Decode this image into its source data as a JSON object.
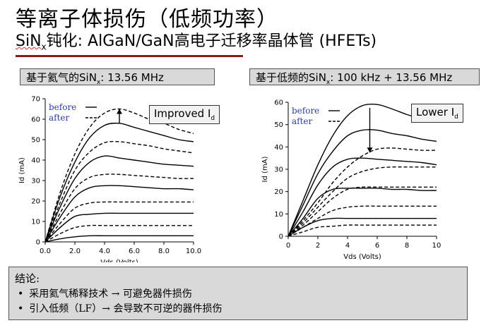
{
  "slide": {
    "title": "等离子体损伤（低频功率）",
    "subtitle_pre": "SiN",
    "subtitle_sub": "x",
    "subtitle_post": "钝化: AlGaN/GaN高电子迁移率晶体管 (HFETs)"
  },
  "panels": {
    "left": {
      "label_pre": "基于氦气的SiN",
      "label_sub": "x",
      "label_post": ": 13.56 MHz",
      "callout_main": "Improved I",
      "callout_sub": "d"
    },
    "right": {
      "label_pre": "基于低频的SiN",
      "label_sub": "x",
      "label_post": ": 100 kHz + 13.56 MHz",
      "callout_main": "Lower I",
      "callout_sub": "d"
    }
  },
  "conclusion": {
    "heading": "结论:",
    "bullets": [
      "采用氦气稀释技术 → 可避免器件损伤",
      "引入低频（LF）→ 会导致不可逆的器件损伤"
    ]
  },
  "colors": {
    "legend_text": "#2b3d9e",
    "line": "#000000",
    "axis": "#000000",
    "rule": "#8b1a1a"
  },
  "chart_data": [
    {
      "type": "line",
      "xlabel": "Vds (Volts)",
      "ylabel": "Id (mA)",
      "xlim": [
        0,
        10
      ],
      "ylim": [
        0,
        70
      ],
      "xticks": [
        "0.0",
        "2.0",
        "4.0",
        "6.0",
        "8.0",
        "10.0"
      ],
      "yticks": [
        "0",
        "10",
        "20",
        "30",
        "40",
        "50",
        "60",
        "70"
      ],
      "legend": [
        "before",
        "after"
      ],
      "legend_position": "top-left",
      "series": [
        {
          "name": "before",
          "curves": [
            {
              "x": [
                0,
                1,
                2,
                3,
                4,
                5,
                6,
                7,
                8,
                9,
                10
              ],
              "y": [
                0,
                22,
                39,
                51,
                57,
                58,
                56,
                54,
                52,
                50,
                49
              ]
            },
            {
              "x": [
                0,
                1,
                2,
                3,
                4,
                5,
                6,
                7,
                8,
                9,
                10
              ],
              "y": [
                0,
                17,
                31,
                39,
                42,
                41,
                40,
                39,
                38,
                37.5,
                37
              ]
            },
            {
              "x": [
                0,
                1,
                2,
                3,
                4,
                5,
                6,
                7,
                8,
                9,
                10
              ],
              "y": [
                0,
                12,
                22,
                26.5,
                27.5,
                27.5,
                27,
                26.5,
                26,
                26,
                25.5
              ]
            },
            {
              "x": [
                0,
                1,
                2,
                3,
                4,
                5,
                6,
                7,
                8,
                9,
                10
              ],
              "y": [
                0,
                7,
                12.5,
                13.5,
                14,
                14,
                14,
                14,
                14,
                14,
                14
              ]
            },
            {
              "x": [
                0,
                1,
                2,
                3,
                4,
                5,
                6,
                7,
                8,
                9,
                10
              ],
              "y": [
                0,
                1.5,
                2.5,
                3,
                3,
                3,
                3,
                3,
                3,
                3,
                3
              ]
            }
          ]
        },
        {
          "name": "after",
          "curves": [
            {
              "x": [
                0,
                1,
                2,
                3,
                4,
                5,
                6,
                7,
                8,
                9,
                10
              ],
              "y": [
                0,
                24,
                43,
                56,
                63,
                65,
                63,
                60,
                58,
                55,
                53
              ]
            },
            {
              "x": [
                0,
                1,
                2,
                3,
                4,
                5,
                6,
                7,
                8,
                9,
                10
              ],
              "y": [
                0,
                19,
                35,
                44,
                48.5,
                49,
                48,
                47,
                45.5,
                44.5,
                43.5
              ]
            },
            {
              "x": [
                0,
                1,
                2,
                3,
                4,
                5,
                6,
                7,
                8,
                9,
                10
              ],
              "y": [
                0,
                14,
                26,
                31.5,
                33,
                33,
                32.5,
                32,
                31.5,
                31,
                31
              ]
            },
            {
              "x": [
                0,
                1,
                2,
                3,
                4,
                5,
                6,
                7,
                8,
                9,
                10
              ],
              "y": [
                0,
                9,
                16.5,
                19,
                19.5,
                19.5,
                19.5,
                19.5,
                19.5,
                19.5,
                19.5
              ]
            },
            {
              "x": [
                0,
                1,
                2,
                3,
                4,
                5,
                6,
                7,
                8,
                9,
                10
              ],
              "y": [
                0,
                4,
                7,
                8,
                8,
                8,
                8,
                8,
                8,
                8,
                8
              ]
            }
          ]
        }
      ]
    },
    {
      "type": "line",
      "xlabel": "Vds (Volts)",
      "ylabel": "Id (mA)",
      "xlim": [
        0,
        10
      ],
      "ylim": [
        0,
        60
      ],
      "xticks": [
        "0",
        "2",
        "4",
        "6",
        "8",
        "10"
      ],
      "yticks": [
        "0",
        "10",
        "20",
        "30",
        "40",
        "50",
        "60"
      ],
      "legend": [
        "before",
        "after"
      ],
      "legend_position": "top-left",
      "series": [
        {
          "name": "before",
          "curves": [
            {
              "x": [
                0,
                1,
                2,
                3,
                4,
                5,
                6,
                7,
                8,
                9,
                10
              ],
              "y": [
                0,
                16,
                32,
                45,
                54,
                58.5,
                59,
                57,
                54.5,
                52.5,
                51
              ]
            },
            {
              "x": [
                0,
                1,
                2,
                3,
                4,
                5,
                6,
                7,
                8,
                9,
                10
              ],
              "y": [
                0,
                14,
                28,
                38,
                45,
                47.5,
                47.5,
                46,
                45,
                43.5,
                42.5
              ]
            },
            {
              "x": [
                0,
                1,
                2,
                3,
                4,
                5,
                6,
                7,
                8,
                9,
                10
              ],
              "y": [
                0,
                11,
                23,
                31,
                34.5,
                35,
                34.5,
                34,
                33.5,
                33,
                32
              ]
            },
            {
              "x": [
                0,
                1,
                2,
                3,
                4,
                5,
                6,
                7,
                8,
                9,
                10
              ],
              "y": [
                0,
                8,
                17,
                21,
                21.5,
                21.5,
                21.5,
                21,
                21,
                20.5,
                20.5
              ]
            },
            {
              "x": [
                0,
                1,
                2,
                3,
                4,
                5,
                6,
                7,
                8,
                9,
                10
              ],
              "y": [
                0,
                4,
                7,
                8,
                8,
                8,
                8,
                8,
                8,
                8,
                8
              ]
            }
          ]
        },
        {
          "name": "after",
          "curves": [
            {
              "x": [
                0,
                1,
                2,
                3,
                4,
                5,
                6,
                7,
                8,
                9,
                10
              ],
              "y": [
                0,
                7,
                15,
                24,
                31,
                36,
                39,
                39.5,
                39,
                38.5,
                38.5
              ]
            },
            {
              "x": [
                0,
                1,
                2,
                3,
                4,
                5,
                6,
                7,
                8,
                9,
                10
              ],
              "y": [
                0,
                6,
                13,
                20,
                26,
                29,
                30.5,
                31,
                31,
                31,
                31
              ]
            },
            {
              "x": [
                0,
                1,
                2,
                3,
                4,
                5,
                6,
                7,
                8,
                9,
                10
              ],
              "y": [
                0,
                5,
                11,
                17,
                21,
                22,
                22,
                22,
                22,
                22,
                22
              ]
            },
            {
              "x": [
                0,
                1,
                2,
                3,
                4,
                5,
                6,
                7,
                8,
                9,
                10
              ],
              "y": [
                0,
                4,
                8,
                11.5,
                13,
                13.5,
                13.5,
                13.5,
                13.5,
                13.5,
                13.5
              ]
            },
            {
              "x": [
                0,
                1,
                2,
                3,
                4,
                5,
                6,
                7,
                8,
                9,
                10
              ],
              "y": [
                0,
                2,
                4,
                4.5,
                5,
                5,
                5,
                5,
                5,
                5,
                5
              ]
            }
          ]
        }
      ]
    }
  ]
}
